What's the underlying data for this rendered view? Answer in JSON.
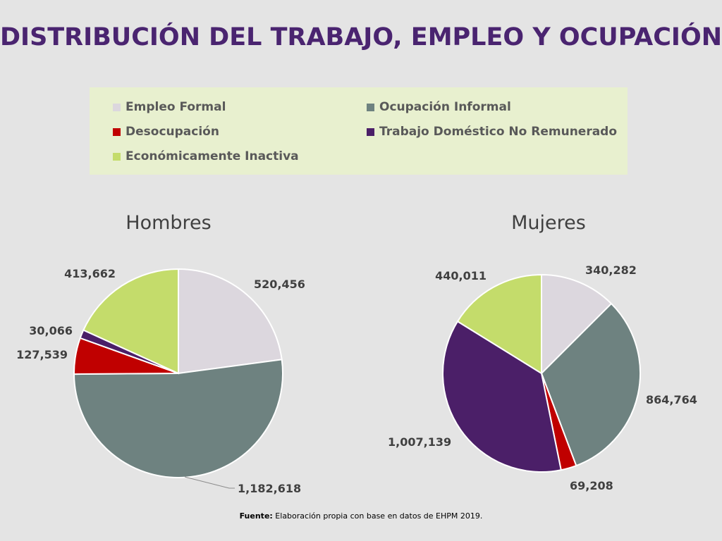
{
  "title": "DISTRIBUCIÓN DEL TRABAJO, EMPLEO Y OCUPACIÓN",
  "legend": {
    "items": [
      {
        "label": "Empleo Formal",
        "color": "#dcd7de"
      },
      {
        "label": "Ocupación Informal",
        "color": "#6e8280"
      },
      {
        "label": "Desocupación",
        "color": "#c00000"
      },
      {
        "label": "Trabajo Doméstico No Remunerado",
        "color": "#4b1f68"
      },
      {
        "label": "Económicamente Inactiva",
        "color": "#c4dc6b"
      }
    ]
  },
  "chart_data": [
    {
      "type": "pie",
      "title": "Hombres",
      "categories": [
        "Empleo Formal",
        "Ocupación Informal",
        "Desocupación",
        "Trabajo Doméstico No Remunerado",
        "Económicamente Inactiva"
      ],
      "values": [
        520456,
        1182618,
        127539,
        30066,
        413662
      ],
      "labels": [
        "520,456",
        "1,182,618",
        "127,539",
        "30,066",
        "413,662"
      ]
    },
    {
      "type": "pie",
      "title": "Mujeres",
      "categories": [
        "Empleo Formal",
        "Ocupación Informal",
        "Desocupación",
        "Trabajo Doméstico No Remunerado",
        "Económicamente Inactiva"
      ],
      "values": [
        340282,
        864764,
        69208,
        1007139,
        440011
      ],
      "labels": [
        "340,282",
        "864,764",
        "69,208",
        "1,007,139",
        "440,011"
      ]
    }
  ],
  "footnote": {
    "prefix": "Fuente:",
    "text": " Elaboración propia con base en datos de EHPM 2019."
  }
}
